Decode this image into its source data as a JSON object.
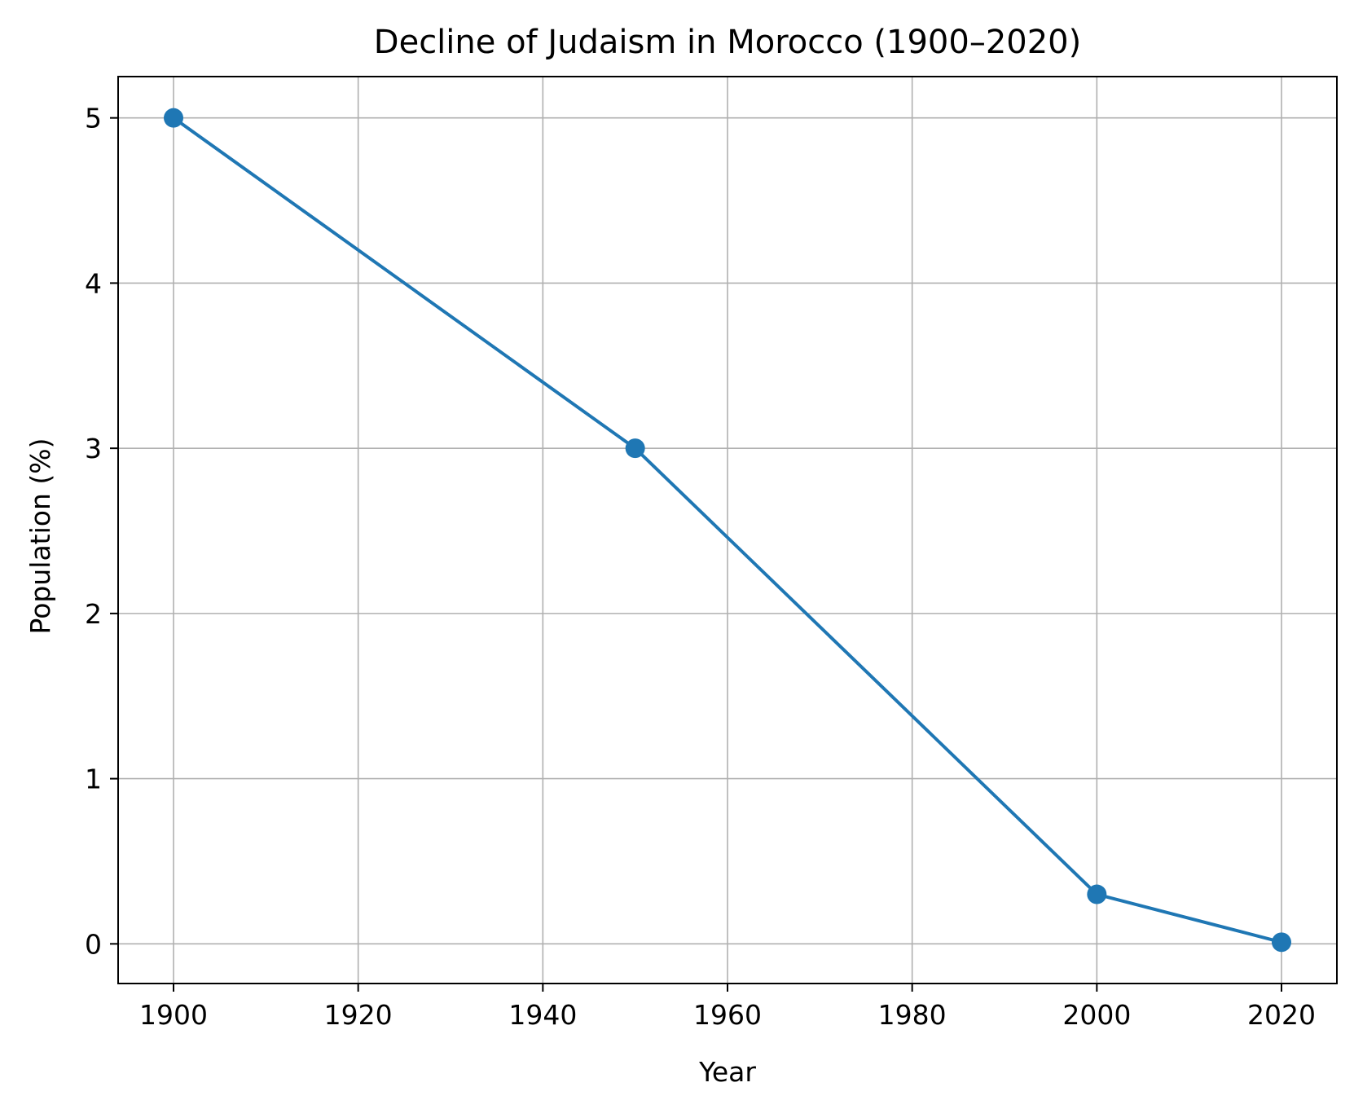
{
  "chart_data": {
    "type": "line",
    "title": "Decline of Judaism in Morocco (1900–2020)",
    "xlabel": "Year",
    "ylabel": "Population (%)",
    "xlim": [
      1894,
      2026
    ],
    "ylim": [
      -0.24,
      5.25
    ],
    "xticks": [
      1900,
      1920,
      1940,
      1960,
      1980,
      2000,
      2020
    ],
    "yticks": [
      0,
      1,
      2,
      3,
      4,
      5
    ],
    "grid": true,
    "series": [
      {
        "color": "#1f77b4",
        "marker": "circle",
        "x": [
          1900,
          1950,
          2000,
          2020
        ],
        "y": [
          5,
          3,
          0.3,
          0.01
        ]
      }
    ]
  }
}
